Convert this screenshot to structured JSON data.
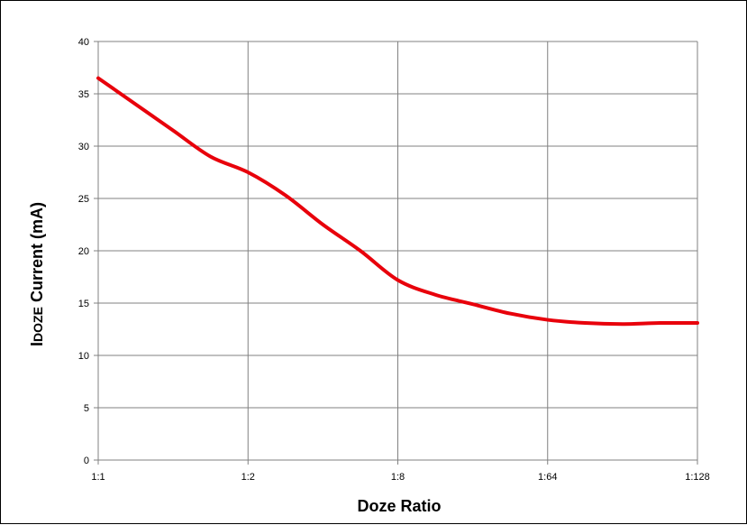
{
  "chart_data": {
    "type": "line",
    "title": "",
    "xlabel": "Doze Ratio",
    "ylabel": {
      "prefix": "I",
      "subscript": "DOZE",
      "suffix": " Current (mA)"
    },
    "categories": [
      "1:1",
      "1:2",
      "1:8",
      "1:64",
      "1:128"
    ],
    "ylim": [
      0,
      40
    ],
    "yticks": [
      "0",
      "5",
      "10",
      "15",
      "20",
      "25",
      "30",
      "35",
      "40"
    ],
    "grid": true,
    "legend": "none",
    "series": [
      {
        "color": "#e8000b",
        "points": [
          [
            0,
            36.5
          ],
          [
            0.25,
            34.0
          ],
          [
            0.5,
            31.5
          ],
          [
            0.75,
            29.0
          ],
          [
            1.0,
            27.5
          ],
          [
            1.25,
            25.3
          ],
          [
            1.5,
            22.5
          ],
          [
            1.75,
            20.0
          ],
          [
            2.0,
            17.2
          ],
          [
            2.25,
            15.8
          ],
          [
            2.5,
            14.9
          ],
          [
            2.75,
            14.0
          ],
          [
            3.0,
            13.4
          ],
          [
            3.25,
            13.1
          ],
          [
            3.5,
            13.0
          ],
          [
            3.75,
            13.1
          ],
          [
            4.0,
            13.1
          ]
        ]
      }
    ]
  }
}
